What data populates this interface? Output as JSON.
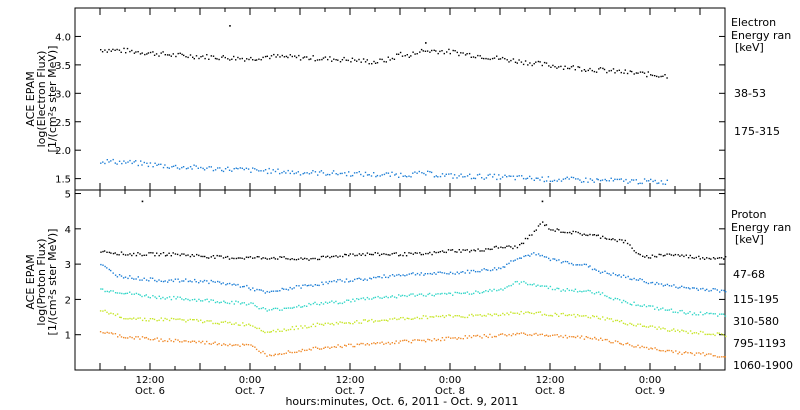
{
  "chart_data": [
    {
      "type": "scatter",
      "panel": "electron",
      "ylabel": [
        "ACE EPAM",
        "log(Electron Flux)",
        "[1/(cm²s ster MeV)]"
      ],
      "ylim": [
        1.3,
        4.5
      ],
      "yticks": [
        "1.5",
        "2.0",
        "2.5",
        "3.0",
        "3.5",
        "4.0"
      ],
      "legend_title": [
        "Electron",
        "Energy ran",
        "[keV]"
      ],
      "series": [
        {
          "name": "38-53",
          "color": "#000000",
          "points": [
            [
              0,
              3.78
            ],
            [
              6,
              3.76
            ],
            [
              12,
              3.72
            ],
            [
              18,
              3.68
            ],
            [
              24,
              3.66
            ],
            [
              30,
              3.64
            ],
            [
              36,
              3.62
            ],
            [
              40,
              3.66
            ],
            [
              48,
              3.64
            ],
            [
              54,
              3.62
            ],
            [
              60,
              3.6
            ],
            [
              66,
              3.56
            ],
            [
              70,
              3.62
            ],
            [
              72,
              3.72
            ],
            [
              74,
              3.65
            ],
            [
              76,
              3.75
            ],
            [
              80,
              3.76
            ],
            [
              84,
              3.74
            ],
            [
              90,
              3.68
            ],
            [
              96,
              3.62
            ],
            [
              102,
              3.56
            ],
            [
              108,
              3.5
            ],
            [
              114,
              3.46
            ],
            [
              120,
              3.42
            ],
            [
              126,
              3.38
            ],
            [
              132,
              3.34
            ],
            [
              136,
              3.32
            ]
          ]
        },
        {
          "name": "175-315",
          "color": "#1f7fd6",
          "points": [
            [
              0,
              1.82
            ],
            [
              6,
              1.8
            ],
            [
              12,
              1.76
            ],
            [
              18,
              1.72
            ],
            [
              24,
              1.7
            ],
            [
              30,
              1.68
            ],
            [
              36,
              1.66
            ],
            [
              42,
              1.64
            ],
            [
              48,
              1.62
            ],
            [
              54,
              1.61
            ],
            [
              60,
              1.6
            ],
            [
              66,
              1.58
            ],
            [
              72,
              1.58
            ],
            [
              78,
              1.6
            ],
            [
              84,
              1.56
            ],
            [
              90,
              1.55
            ],
            [
              96,
              1.54
            ],
            [
              102,
              1.52
            ],
            [
              108,
              1.5
            ],
            [
              114,
              1.49
            ],
            [
              120,
              1.48
            ],
            [
              126,
              1.47
            ],
            [
              132,
              1.46
            ],
            [
              136,
              1.45
            ]
          ]
        }
      ],
      "outliers": [
        [
          31,
          4.2
        ],
        [
          78,
          3.9
        ]
      ]
    },
    {
      "type": "scatter",
      "panel": "proton",
      "ylabel": [
        "ACE EPAM",
        "log(Proton Flux)",
        "[1/(cm²s ster MeV)]"
      ],
      "ylim": [
        0.0,
        5.1
      ],
      "yticks": [
        "1",
        "2",
        "3",
        "4",
        "5"
      ],
      "legend_title": [
        "Proton",
        "Energy ran",
        "[keV]"
      ],
      "series": [
        {
          "name": "47-68",
          "color": "#000000",
          "points": [
            [
              0,
              3.4
            ],
            [
              6,
              3.3
            ],
            [
              12,
              3.3
            ],
            [
              18,
              3.3
            ],
            [
              24,
              3.25
            ],
            [
              30,
              3.2
            ],
            [
              36,
              3.2
            ],
            [
              42,
              3.2
            ],
            [
              48,
              3.15
            ],
            [
              54,
              3.2
            ],
            [
              60,
              3.3
            ],
            [
              66,
              3.3
            ],
            [
              72,
              3.3
            ],
            [
              78,
              3.3
            ],
            [
              84,
              3.4
            ],
            [
              90,
              3.4
            ],
            [
              96,
              3.5
            ],
            [
              100,
              3.5
            ],
            [
              103,
              3.8
            ],
            [
              106,
              4.2
            ],
            [
              108,
              4.0
            ],
            [
              114,
              3.9
            ],
            [
              120,
              3.8
            ],
            [
              126,
              3.65
            ],
            [
              130,
              3.2
            ],
            [
              136,
              3.3
            ],
            [
              144,
              3.2
            ],
            [
              150,
              3.2
            ]
          ]
        },
        {
          "name": "115-195",
          "color": "#1f7fd6",
          "points": [
            [
              0,
              3.0
            ],
            [
              4,
              2.7
            ],
            [
              10,
              2.6
            ],
            [
              16,
              2.55
            ],
            [
              22,
              2.55
            ],
            [
              28,
              2.5
            ],
            [
              34,
              2.4
            ],
            [
              40,
              2.2
            ],
            [
              46,
              2.35
            ],
            [
              52,
              2.45
            ],
            [
              58,
              2.55
            ],
            [
              64,
              2.6
            ],
            [
              70,
              2.7
            ],
            [
              76,
              2.75
            ],
            [
              82,
              2.75
            ],
            [
              88,
              2.8
            ],
            [
              96,
              2.9
            ],
            [
              100,
              3.2
            ],
            [
              104,
              3.3
            ],
            [
              110,
              3.1
            ],
            [
              116,
              3.0
            ],
            [
              120,
              2.8
            ],
            [
              124,
              2.7
            ],
            [
              128,
              2.6
            ],
            [
              134,
              2.45
            ],
            [
              140,
              2.35
            ],
            [
              146,
              2.3
            ],
            [
              150,
              2.25
            ]
          ]
        },
        {
          "name": "310-580",
          "color": "#33d6c8",
          "points": [
            [
              0,
              2.3
            ],
            [
              6,
              2.2
            ],
            [
              12,
              2.1
            ],
            [
              18,
              2.05
            ],
            [
              24,
              2.0
            ],
            [
              30,
              1.95
            ],
            [
              36,
              1.9
            ],
            [
              40,
              1.7
            ],
            [
              46,
              1.8
            ],
            [
              52,
              1.9
            ],
            [
              58,
              1.95
            ],
            [
              64,
              2.05
            ],
            [
              70,
              2.1
            ],
            [
              76,
              2.15
            ],
            [
              82,
              2.15
            ],
            [
              88,
              2.2
            ],
            [
              96,
              2.3
            ],
            [
              100,
              2.5
            ],
            [
              104,
              2.45
            ],
            [
              110,
              2.3
            ],
            [
              116,
              2.25
            ],
            [
              120,
              2.2
            ],
            [
              124,
              2.0
            ],
            [
              128,
              1.9
            ],
            [
              134,
              1.75
            ],
            [
              140,
              1.65
            ],
            [
              146,
              1.6
            ],
            [
              150,
              1.55
            ]
          ]
        },
        {
          "name": "795-1193",
          "color": "#c8e62a",
          "points": [
            [
              0,
              1.7
            ],
            [
              6,
              1.5
            ],
            [
              12,
              1.45
            ],
            [
              18,
              1.45
            ],
            [
              24,
              1.4
            ],
            [
              30,
              1.35
            ],
            [
              36,
              1.3
            ],
            [
              40,
              1.1
            ],
            [
              46,
              1.2
            ],
            [
              52,
              1.3
            ],
            [
              58,
              1.35
            ],
            [
              64,
              1.4
            ],
            [
              70,
              1.45
            ],
            [
              76,
              1.5
            ],
            [
              82,
              1.55
            ],
            [
              88,
              1.55
            ],
            [
              96,
              1.6
            ],
            [
              102,
              1.65
            ],
            [
              108,
              1.6
            ],
            [
              114,
              1.55
            ],
            [
              120,
              1.5
            ],
            [
              124,
              1.4
            ],
            [
              128,
              1.3
            ],
            [
              134,
              1.2
            ],
            [
              140,
              1.1
            ],
            [
              146,
              1.05
            ],
            [
              150,
              1.0
            ]
          ]
        },
        {
          "name": "1060-1900",
          "color": "#f08a2a",
          "points": [
            [
              0,
              1.1
            ],
            [
              6,
              0.95
            ],
            [
              12,
              0.9
            ],
            [
              18,
              0.85
            ],
            [
              24,
              0.8
            ],
            [
              30,
              0.75
            ],
            [
              36,
              0.7
            ],
            [
              40,
              0.45
            ],
            [
              46,
              0.55
            ],
            [
              52,
              0.65
            ],
            [
              58,
              0.7
            ],
            [
              64,
              0.75
            ],
            [
              70,
              0.8
            ],
            [
              76,
              0.85
            ],
            [
              82,
              0.9
            ],
            [
              88,
              0.95
            ],
            [
              96,
              1.0
            ],
            [
              102,
              1.05
            ],
            [
              108,
              1.0
            ],
            [
              114,
              0.95
            ],
            [
              120,
              0.9
            ],
            [
              124,
              0.8
            ],
            [
              128,
              0.7
            ],
            [
              134,
              0.6
            ],
            [
              140,
              0.5
            ],
            [
              146,
              0.45
            ],
            [
              150,
              0.4
            ]
          ]
        }
      ],
      "outliers": [
        [
          10,
          4.8
        ],
        [
          106,
          4.8
        ]
      ]
    }
  ],
  "x_axis": {
    "ticks": [
      {
        "hours": 12,
        "time": "12:00",
        "day": "Oct. 6"
      },
      {
        "hours": 36,
        "time": "0:00",
        "day": "Oct. 7"
      },
      {
        "hours": 60,
        "time": "12:00",
        "day": "Oct. 7"
      },
      {
        "hours": 84,
        "time": "0:00",
        "day": "Oct. 8"
      },
      {
        "hours": 108,
        "time": "12:00",
        "day": "Oct. 8"
      },
      {
        "hours": 132,
        "time": "0:00",
        "day": "Oct. 9"
      }
    ],
    "range_hours": [
      -6,
      150
    ],
    "label": "hours:minutes, Oct.  6, 2011 - Oct.  9, 2011"
  }
}
